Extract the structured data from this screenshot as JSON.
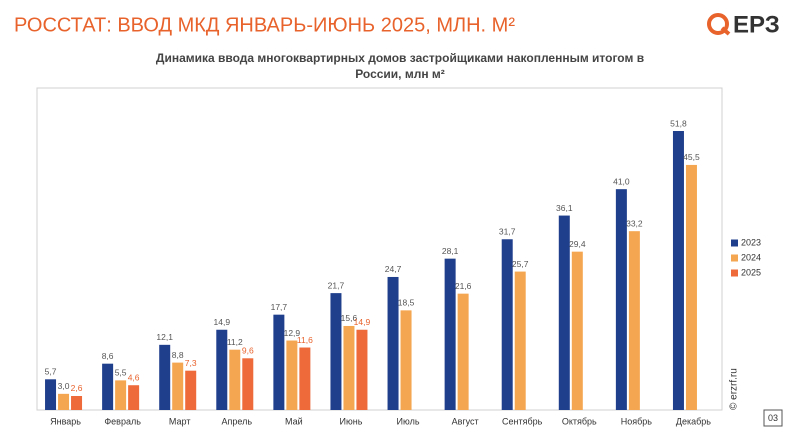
{
  "header": {
    "title": "РОССТАТ: ВВОД МКД ЯНВАРЬ-ИЮНЬ 2025,  МЛН. М²",
    "logo": "ЕРЗ"
  },
  "chart_data": {
    "type": "bar",
    "title": "Динамика ввода многоквартирных домов застройщиками накопленным итогом в России, млн м²",
    "categories": [
      "Январь",
      "Февраль",
      "Март",
      "Апрель",
      "Май",
      "Июнь",
      "Июль",
      "Август",
      "Сентябрь",
      "Октябрь",
      "Ноябрь",
      "Декабрь"
    ],
    "series": [
      {
        "name": "2023",
        "color": "#1f3f8c",
        "label_color": "#555555",
        "values": [
          5.7,
          8.6,
          12.1,
          14.9,
          17.7,
          21.7,
          24.7,
          28.1,
          31.7,
          36.1,
          41.0,
          51.8
        ],
        "value_labels": [
          "5,7",
          "8,6",
          "12,1",
          "14,9",
          "17,7",
          "21,7",
          "24,7",
          "28,1",
          "31,7",
          "36,1",
          "41,0",
          "51,8"
        ]
      },
      {
        "name": "2024",
        "color": "#f5a650",
        "label_color": "#555555",
        "values": [
          3.0,
          5.5,
          8.8,
          11.2,
          12.9,
          15.6,
          18.5,
          21.6,
          25.7,
          29.4,
          33.2,
          45.5
        ],
        "value_labels": [
          "3,0",
          "5,5",
          "8,8",
          "11,2",
          "12,9",
          "15,6",
          "18,5",
          "21,6",
          "25,7",
          "29,4",
          "33,2",
          "45,5"
        ]
      },
      {
        "name": "2025",
        "color": "#ee6a3a",
        "label_color": "#e8622c",
        "values": [
          2.6,
          4.6,
          7.3,
          9.6,
          11.6,
          14.9,
          null,
          null,
          null,
          null,
          null,
          null
        ],
        "value_labels": [
          "2,6",
          "4,6",
          "7,3",
          "9,6",
          "11,6",
          "14,9",
          null,
          null,
          null,
          null,
          null,
          null
        ]
      }
    ],
    "legend": "right"
  },
  "footer": {
    "copyright": "© erzrf.ru",
    "page": "03"
  }
}
